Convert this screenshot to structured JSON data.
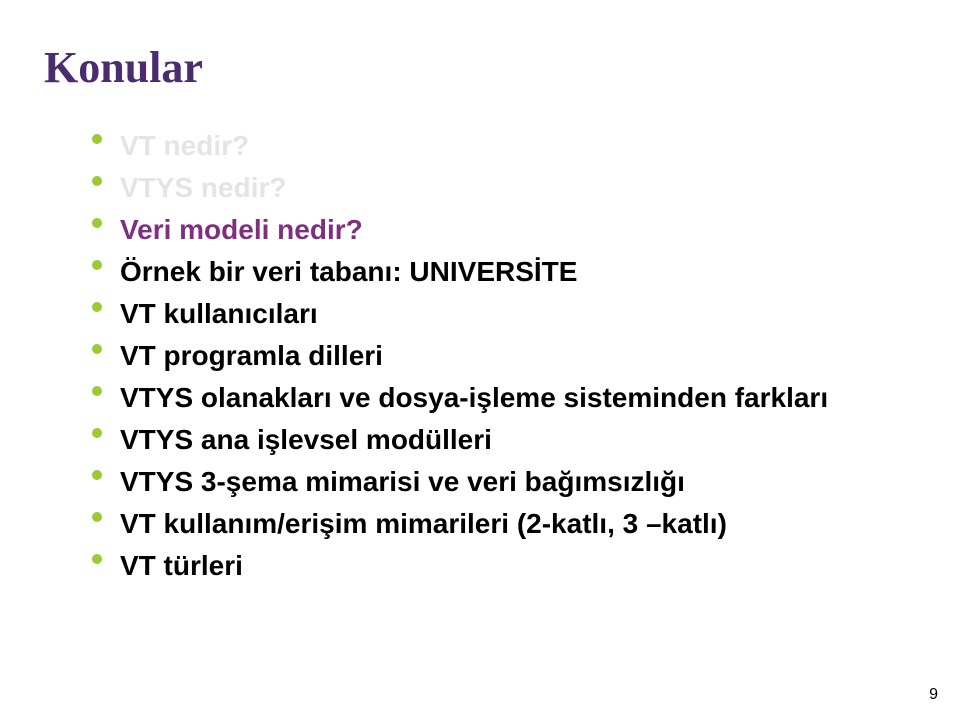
{
  "title": {
    "text": "Konular",
    "color": "#4b2c6f",
    "fontsize": 44
  },
  "bullet": {
    "color": "#99cc33",
    "fontsize": 28
  },
  "items": [
    {
      "text": "VT nedir?",
      "kind": "ghost",
      "color": "#e4e4e4"
    },
    {
      "text": "VTYS nedir?",
      "kind": "ghost",
      "color": "#e4e4e4"
    },
    {
      "text": "Veri modeli nedir?",
      "kind": "highlight",
      "color": "#7f2f7f"
    },
    {
      "text": "Örnek bir veri tabanı: UNIVERSİTE",
      "kind": "normal",
      "color": "#000000"
    },
    {
      "text": "VT kullanıcıları",
      "kind": "normal",
      "color": "#000000"
    },
    {
      "text": "VT programla dilleri",
      "kind": "normal",
      "color": "#000000"
    },
    {
      "text": "VTYS olanakları ve dosya-işleme sisteminden farkları",
      "kind": "normal",
      "color": "#000000"
    },
    {
      "text": "VTYS ana işlevsel modülleri",
      "kind": "normal",
      "color": "#000000"
    },
    {
      "text": "VTYS 3-şema mimarisi ve veri bağımsızlığı",
      "kind": "normal",
      "color": "#000000"
    },
    {
      "text": "VT kullanım/erişim mimarileri (2-katlı, 3 –katlı)",
      "kind": "normal",
      "color": "#000000"
    },
    {
      "text": "VT türleri",
      "kind": "normal",
      "color": "#000000"
    }
  ],
  "page": {
    "number": "9",
    "color": "#000000",
    "fontsize": 16
  }
}
